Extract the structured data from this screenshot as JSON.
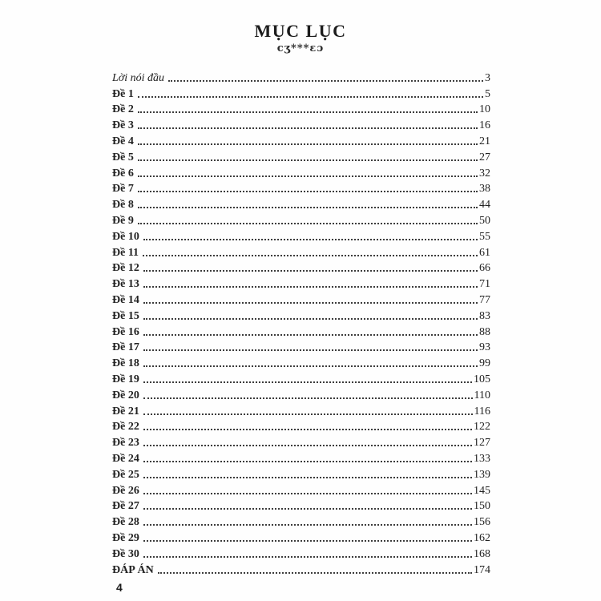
{
  "header": {
    "title": "MỤC LỤC",
    "ornament": "cʒ***ɛɔ"
  },
  "toc": {
    "entries": [
      {
        "label": "Lời nói đầu",
        "page": "3",
        "style": "italic"
      },
      {
        "label": "Đề 1",
        "page": "5",
        "style": "bold"
      },
      {
        "label": "Đề 2",
        "page": "10",
        "style": "bold"
      },
      {
        "label": "Đề 3",
        "page": "16",
        "style": "bold"
      },
      {
        "label": "Đề 4",
        "page": "21",
        "style": "bold"
      },
      {
        "label": "Đề 5",
        "page": "27",
        "style": "bold"
      },
      {
        "label": "Đề 6",
        "page": "32",
        "style": "bold"
      },
      {
        "label": "Đề 7",
        "page": "38",
        "style": "bold"
      },
      {
        "label": "Đề 8",
        "page": "44",
        "style": "bold"
      },
      {
        "label": "Đề 9",
        "page": "50",
        "style": "bold"
      },
      {
        "label": "Đề 10",
        "page": "55",
        "style": "bold"
      },
      {
        "label": "Đề 11",
        "page": "61",
        "style": "bold"
      },
      {
        "label": "Đề 12",
        "page": "66",
        "style": "bold"
      },
      {
        "label": "Đề 13",
        "page": "71",
        "style": "bold"
      },
      {
        "label": "Đề 14",
        "page": "77",
        "style": "bold"
      },
      {
        "label": "Đề 15",
        "page": "83",
        "style": "bold"
      },
      {
        "label": "Đề 16",
        "page": "88",
        "style": "bold"
      },
      {
        "label": "Đề 17",
        "page": "93",
        "style": "bold"
      },
      {
        "label": "Đề 18",
        "page": "99",
        "style": "bold"
      },
      {
        "label": "Đề 19",
        "page": "105",
        "style": "bold"
      },
      {
        "label": "Đề 20",
        "page": "110",
        "style": "bold"
      },
      {
        "label": "Đề 21",
        "page": "116",
        "style": "bold"
      },
      {
        "label": "Đề 22",
        "page": "122",
        "style": "bold"
      },
      {
        "label": "Đề 23",
        "page": "127",
        "style": "bold"
      },
      {
        "label": "Đề 24",
        "page": "133",
        "style": "bold"
      },
      {
        "label": "Đề 25",
        "page": "139",
        "style": "bold"
      },
      {
        "label": "Đề 26",
        "page": "145",
        "style": "bold"
      },
      {
        "label": "Đề 27",
        "page": "150",
        "style": "bold"
      },
      {
        "label": "Đề 28",
        "page": "156",
        "style": "bold"
      },
      {
        "label": "Đề 29",
        "page": "162",
        "style": "bold"
      },
      {
        "label": "Đề 30",
        "page": "168",
        "style": "bold"
      },
      {
        "label": "ĐÁP ÁN",
        "page": "174",
        "style": "bold"
      }
    ]
  },
  "footer": {
    "page_number": "4"
  },
  "colors": {
    "background": "#fefefe",
    "text": "#1f1f1f",
    "leader_dots": "#3c3c3c"
  }
}
